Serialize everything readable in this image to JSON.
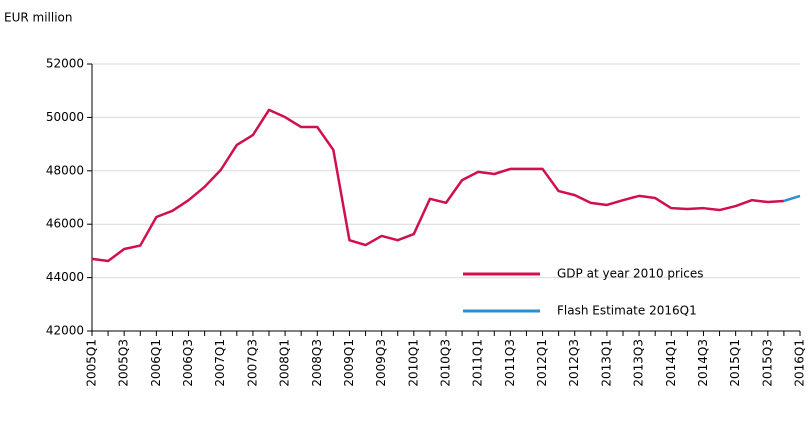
{
  "chart_data": {
    "type": "line",
    "y_axis_label": "EUR million",
    "categories": [
      "2005Q1",
      null,
      "2005Q3",
      null,
      "2006Q1",
      null,
      "2006Q3",
      null,
      "2007Q1",
      null,
      "2007Q3",
      null,
      "2008Q1",
      null,
      "2008Q3",
      null,
      "2009Q1",
      null,
      "2009Q3",
      null,
      "2010Q1",
      null,
      "2010Q3",
      null,
      "2011Q1",
      null,
      "2011Q3",
      null,
      "2012Q1",
      null,
      "2012Q3",
      null,
      "2013Q1",
      null,
      "2013Q3",
      null,
      "2014Q1",
      null,
      "2014Q3",
      null,
      "2015Q1",
      null,
      "2015Q3",
      null,
      "2016Q1"
    ],
    "series": [
      {
        "name": "GDP at year 2010 prices",
        "color": "#d0104c",
        "values": [
          44700,
          44620,
          45070,
          45200,
          46270,
          46500,
          46900,
          47400,
          48030,
          48970,
          49340,
          50280,
          50010,
          49640,
          49640,
          48780,
          45400,
          45220,
          45560,
          45400,
          45630,
          46950,
          46800,
          47650,
          47960,
          47880,
          48070,
          48070,
          48070,
          47240,
          47090,
          46800,
          46720,
          46900,
          47060,
          46980,
          46600,
          46570,
          46600,
          46530,
          46680,
          46900,
          46830,
          46870,
          null
        ]
      },
      {
        "name": "Flash Estimate 2016Q1",
        "color": "#2a8fce",
        "values": [
          null,
          null,
          null,
          null,
          null,
          null,
          null,
          null,
          null,
          null,
          null,
          null,
          null,
          null,
          null,
          null,
          null,
          null,
          null,
          null,
          null,
          null,
          null,
          null,
          null,
          null,
          null,
          null,
          null,
          null,
          null,
          null,
          null,
          null,
          null,
          null,
          null,
          null,
          null,
          null,
          null,
          null,
          null,
          46870,
          47060
        ]
      }
    ],
    "ylim": [
      42000,
      52000
    ],
    "yticks": [
      42000,
      44000,
      46000,
      48000,
      50000,
      52000
    ],
    "grid": true,
    "legend": "lower right"
  }
}
